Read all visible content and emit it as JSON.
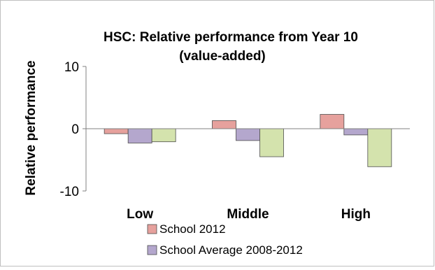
{
  "chart_data": {
    "type": "bar",
    "title_line1": "HSC: Relative performance from Year 10",
    "title_line2": "(value-added)",
    "xlabel": "",
    "ylabel": "Relative performance",
    "ylim": [
      -10,
      10
    ],
    "yticks": [
      10,
      0,
      -10
    ],
    "ytick_labels": [
      "10",
      "0",
      "-10"
    ],
    "categories": [
      "Low",
      "Middle",
      "High"
    ],
    "series": [
      {
        "name": "School 2012",
        "values": [
          -0.8,
          1.3,
          2.3
        ],
        "color": "#e6a19d"
      },
      {
        "name": "School Average 2008-2012",
        "values": [
          -2.3,
          -1.9,
          -1.0
        ],
        "color": "#b4a7cd"
      },
      {
        "values": [
          -2.1,
          -4.5,
          -6.1
        ],
        "color": "#d4e3ad"
      }
    ],
    "grid": false,
    "legend_position": "bottom"
  }
}
